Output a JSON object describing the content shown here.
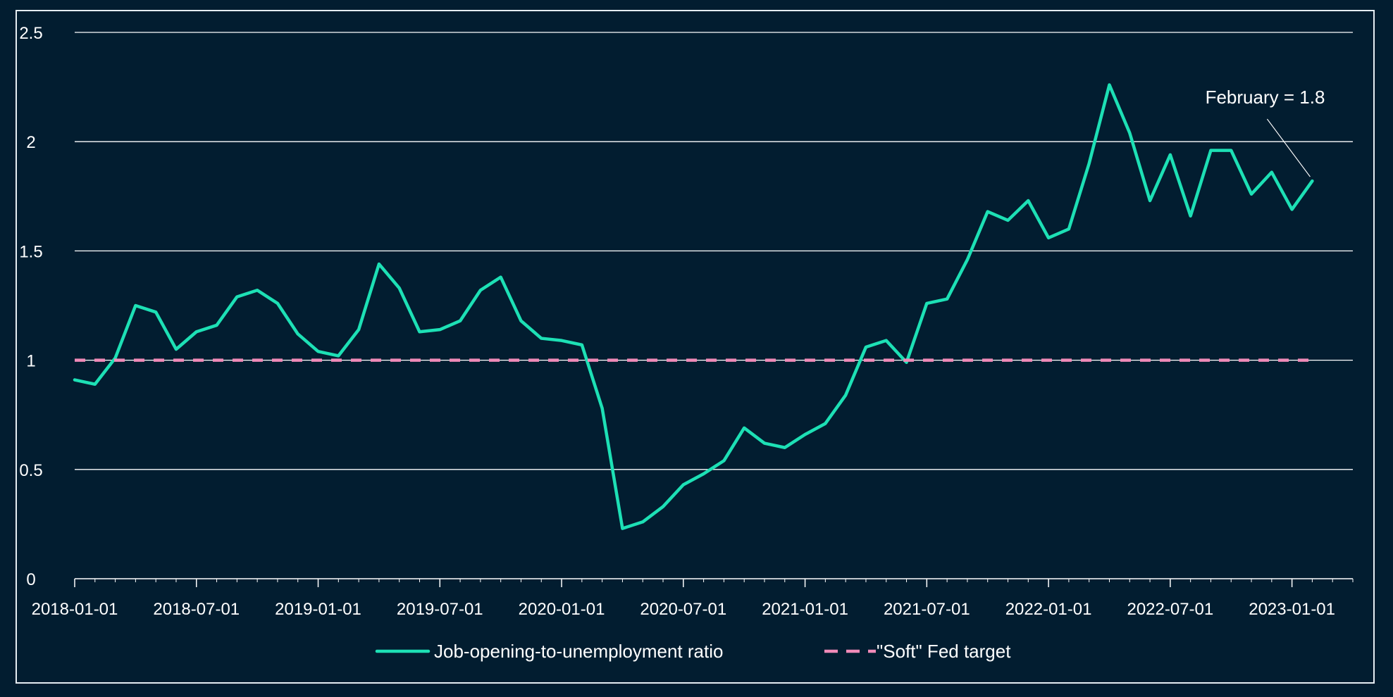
{
  "colors": {
    "background": "#021d30",
    "frame": "#e6edf2",
    "grid": "#ffffff",
    "axis_text": "#ffffff",
    "ratio_line": "#1de0b5",
    "target_line": "#f08ab8"
  },
  "chart_data": {
    "type": "line",
    "title": "",
    "xlabel": "",
    "ylabel": "",
    "ylim": [
      0,
      2.5
    ],
    "yticks": [
      0,
      0.5,
      1,
      1.5,
      2,
      2.5
    ],
    "ytick_labels": [
      "0",
      "0.5",
      "1",
      "1.5",
      "2",
      "2.5"
    ],
    "xlim": [
      "2018-01-01",
      "2023-04-01"
    ],
    "xticks": [
      "2018-01-01",
      "2018-07-01",
      "2019-01-01",
      "2019-07-01",
      "2020-01-01",
      "2020-07-01",
      "2021-01-01",
      "2021-07-01",
      "2022-01-01",
      "2022-07-01",
      "2023-01-01"
    ],
    "grid": "horizontal",
    "legend_placement": "bottom-center",
    "x": [
      "2018-01-01",
      "2018-02-01",
      "2018-03-01",
      "2018-04-01",
      "2018-05-01",
      "2018-06-01",
      "2018-07-01",
      "2018-08-01",
      "2018-09-01",
      "2018-10-01",
      "2018-11-01",
      "2018-12-01",
      "2019-01-01",
      "2019-02-01",
      "2019-03-01",
      "2019-04-01",
      "2019-05-01",
      "2019-06-01",
      "2019-07-01",
      "2019-08-01",
      "2019-09-01",
      "2019-10-01",
      "2019-11-01",
      "2019-12-01",
      "2020-01-01",
      "2020-02-01",
      "2020-03-01",
      "2020-04-01",
      "2020-05-01",
      "2020-06-01",
      "2020-07-01",
      "2020-08-01",
      "2020-09-01",
      "2020-10-01",
      "2020-11-01",
      "2020-12-01",
      "2021-01-01",
      "2021-02-01",
      "2021-03-01",
      "2021-04-01",
      "2021-05-01",
      "2021-06-01",
      "2021-07-01",
      "2021-08-01",
      "2021-09-01",
      "2021-10-01",
      "2021-11-01",
      "2021-12-01",
      "2022-01-01",
      "2022-02-01",
      "2022-03-01",
      "2022-04-01",
      "2022-05-01",
      "2022-06-01",
      "2022-07-01",
      "2022-08-01",
      "2022-09-01",
      "2022-10-01",
      "2022-11-01",
      "2022-12-01",
      "2023-01-01",
      "2023-02-01"
    ],
    "series": [
      {
        "name": "Job-opening-to-unemployment ratio",
        "color": "#1de0b5",
        "style": "solid",
        "values": [
          0.91,
          0.89,
          1.01,
          1.25,
          1.22,
          1.05,
          1.13,
          1.16,
          1.29,
          1.32,
          1.26,
          1.12,
          1.04,
          1.02,
          1.14,
          1.44,
          1.33,
          1.13,
          1.14,
          1.18,
          1.32,
          1.38,
          1.18,
          1.1,
          1.09,
          1.07,
          0.78,
          0.23,
          0.26,
          0.33,
          0.43,
          0.48,
          0.54,
          0.69,
          0.62,
          0.6,
          0.66,
          0.71,
          0.84,
          1.06,
          1.09,
          0.99,
          1.26,
          1.28,
          1.46,
          1.68,
          1.64,
          1.73,
          1.56,
          1.6,
          1.9,
          2.26,
          2.04,
          1.73,
          1.94,
          1.66,
          1.96,
          1.96,
          1.76,
          1.86,
          1.69,
          1.82
        ]
      },
      {
        "name": "\"Soft\" Fed target",
        "color": "#f08ab8",
        "style": "dashed",
        "values": [
          1,
          1,
          1,
          1,
          1,
          1,
          1,
          1,
          1,
          1,
          1,
          1,
          1,
          1,
          1,
          1,
          1,
          1,
          1,
          1,
          1,
          1,
          1,
          1,
          1,
          1,
          1,
          1,
          1,
          1,
          1,
          1,
          1,
          1,
          1,
          1,
          1,
          1,
          1,
          1,
          1,
          1,
          1,
          1,
          1,
          1,
          1,
          1,
          1,
          1,
          1,
          1,
          1,
          1,
          1,
          1,
          1,
          1,
          1,
          1,
          1,
          1
        ]
      }
    ],
    "annotations": [
      {
        "text": "February = 1.8",
        "x": "2023-02-01",
        "y": 1.82
      }
    ]
  }
}
